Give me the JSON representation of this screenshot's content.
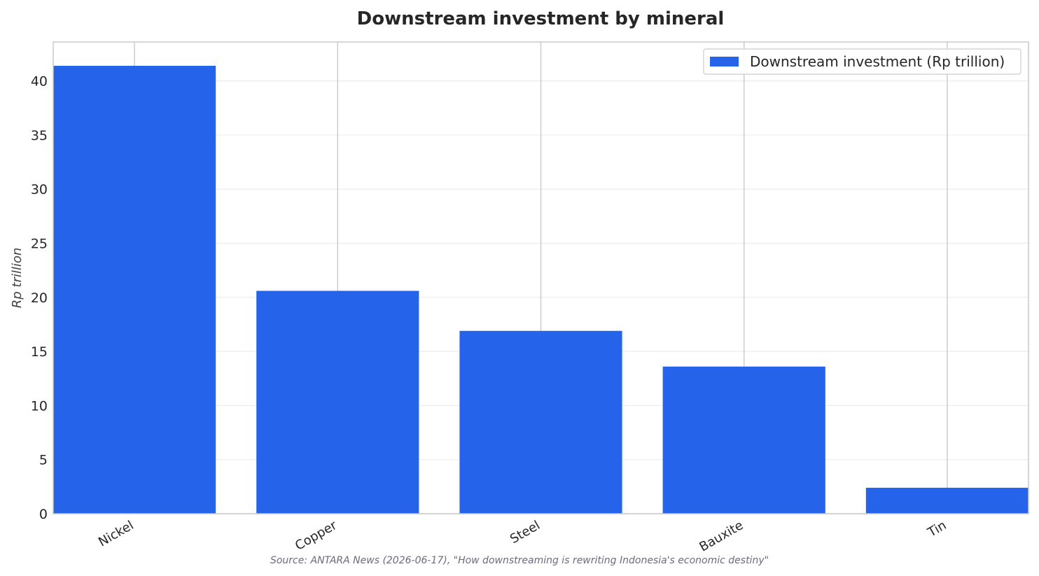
{
  "chart_data": {
    "type": "bar",
    "title": "Downstream investment by mineral",
    "xlabel": "",
    "ylabel": "Rp trillion",
    "categories": [
      "Nickel",
      "Copper",
      "Steel",
      "Bauxite",
      "Tin"
    ],
    "series": [
      {
        "name": "Downstream investment (Rp trillion)",
        "values": [
          41.4,
          20.6,
          16.9,
          13.6,
          2.4
        ],
        "color": "#2563eb"
      }
    ],
    "ylim": [
      0,
      43.6
    ],
    "yticks": [
      0,
      5,
      10,
      15,
      20,
      25,
      30,
      35,
      40
    ],
    "grid": true,
    "legend_position": "top-right",
    "source": "Source: ANTARA News (2026-06-17), \"How downstreaming is rewriting Indonesia's economic destiny\""
  }
}
